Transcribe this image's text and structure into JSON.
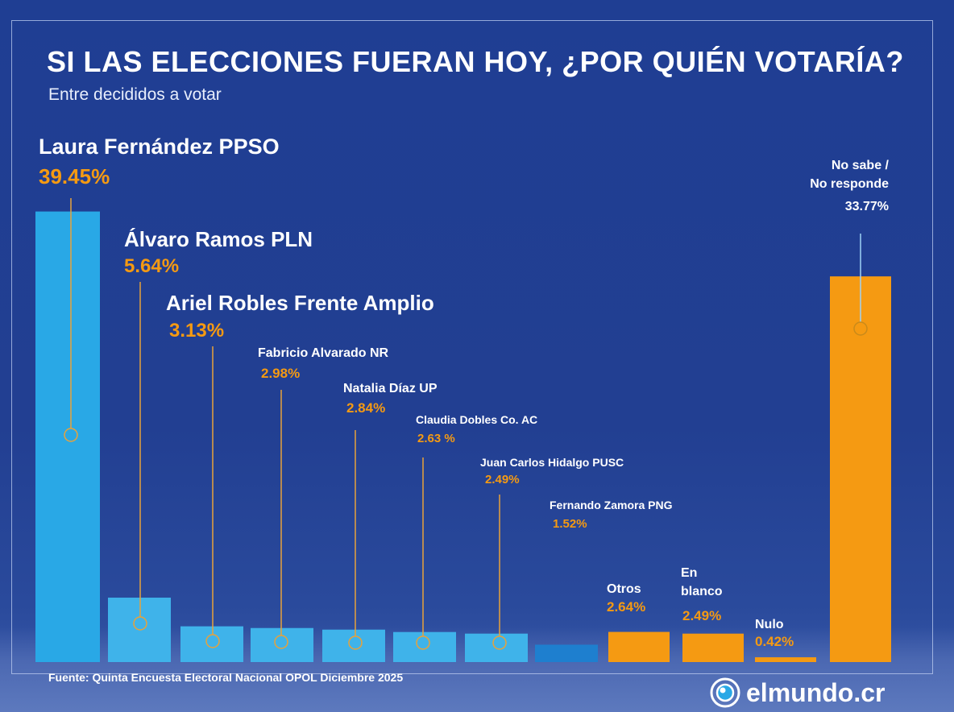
{
  "header": {
    "title": "SI LAS ELECCIONES FUERAN HOY, ¿POR QUIÉN VOTARÍA?",
    "subtitle": "Entre decididos a votar"
  },
  "footer": {
    "source": "Fuente: Quinta Encuesta Electoral Nacional OPOL Diciembre 2025",
    "logo_text": "elmundo.cr"
  },
  "colors": {
    "background": "#1f3e93",
    "candidate_bar": "#29a8e6",
    "candidate_bar_light": "#3fb3ea",
    "minor_bar": "#1e7fcf",
    "other_bar": "#f59a12",
    "value_text": "#f59a12",
    "leader_line": "#e8a23a"
  },
  "chart_data": {
    "type": "bar",
    "categories": [
      "Laura Fernández PPSO",
      "Álvaro Ramos PLN",
      "Ariel Robles Frente Amplio",
      "Fabricio Alvarado NR",
      "Natalia Díaz UP",
      "Claudia Dobles Co. AC",
      "Juan Carlos Hidalgo PUSC",
      "Fernando Zamora PNG",
      "Otros",
      "En blanco",
      "Nulo",
      "No sabe / No responde"
    ],
    "values": [
      39.45,
      5.64,
      3.13,
      2.98,
      2.84,
      2.63,
      2.49,
      1.52,
      2.64,
      2.49,
      0.42,
      33.77
    ],
    "value_labels": [
      "39.45%",
      "5.64%",
      "3.13%",
      "2.98%",
      "2.84%",
      "2.63 %",
      "2.49%",
      "1.52%",
      "2.64%",
      "2.49%",
      "0.42%",
      "33.77%"
    ],
    "group": [
      "candidate",
      "candidate",
      "candidate",
      "candidate",
      "candidate",
      "candidate",
      "candidate",
      "candidate",
      "other",
      "other",
      "other",
      "other"
    ],
    "ylim": [
      0,
      42
    ],
    "grid": false,
    "legend": "none",
    "title": "SI LAS ELECCIONES FUERAN HOY, ¿POR QUIÉN VOTARÍA?",
    "subtitle": "Entre decididos a votar"
  }
}
